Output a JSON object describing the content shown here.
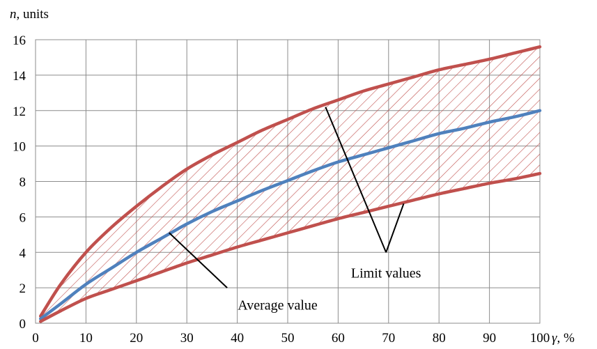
{
  "chart_data": {
    "type": "line",
    "title": "",
    "xlabel_symbol": "γ",
    "xlabel_unit": ", %",
    "ylabel_symbol": "n",
    "ylabel_unit": ", units",
    "xlim": [
      0,
      100
    ],
    "ylim": [
      0,
      16
    ],
    "xticks": [
      0,
      10,
      20,
      30,
      40,
      50,
      60,
      70,
      80,
      90,
      100
    ],
    "yticks": [
      0,
      2,
      4,
      6,
      8,
      10,
      12,
      14,
      16
    ],
    "grid": true,
    "x": [
      1,
      5,
      10,
      15,
      20,
      25,
      30,
      35,
      40,
      45,
      50,
      55,
      60,
      65,
      70,
      75,
      80,
      85,
      90,
      95,
      100
    ],
    "series": [
      {
        "role": "upper-limit",
        "color": "#c0504d",
        "values": [
          0.4,
          2.2,
          4.0,
          5.4,
          6.6,
          7.7,
          8.7,
          9.5,
          10.2,
          10.9,
          11.5,
          12.1,
          12.6,
          13.1,
          13.5,
          13.9,
          14.3,
          14.6,
          14.9,
          15.25,
          15.6
        ]
      },
      {
        "role": "average",
        "color": "#4f81bd",
        "values": [
          0.25,
          1.1,
          2.2,
          3.1,
          4.0,
          4.8,
          5.6,
          6.3,
          6.9,
          7.5,
          8.05,
          8.6,
          9.1,
          9.5,
          9.9,
          10.3,
          10.7,
          11.0,
          11.35,
          11.65,
          12.0
        ]
      },
      {
        "role": "lower-limit",
        "color": "#c0504d",
        "values": [
          0.1,
          0.7,
          1.4,
          1.9,
          2.4,
          2.9,
          3.4,
          3.85,
          4.3,
          4.7,
          5.1,
          5.5,
          5.9,
          6.25,
          6.6,
          6.95,
          7.3,
          7.6,
          7.9,
          8.15,
          8.45
        ]
      }
    ],
    "band": {
      "between": [
        "upper-limit",
        "lower-limit"
      ],
      "pattern": "diagonal-hatch",
      "color": "#c0504d"
    },
    "annotations": [
      {
        "text": "Average value",
        "label_at": [
          48,
          1.05
        ],
        "anchor": "middle",
        "lines": [
          {
            "from": [
              38,
              2.0
            ],
            "to": [
              26.5,
              5.1
            ]
          }
        ]
      },
      {
        "text": "Limit values",
        "label_at": [
          69.5,
          2.85
        ],
        "anchor": "middle",
        "lines": [
          {
            "from": [
              69.5,
              4.0
            ],
            "to": [
              57.5,
              12.2
            ]
          },
          {
            "from": [
              69.5,
              4.0
            ],
            "to": [
              73,
              6.75
            ]
          }
        ]
      }
    ]
  }
}
